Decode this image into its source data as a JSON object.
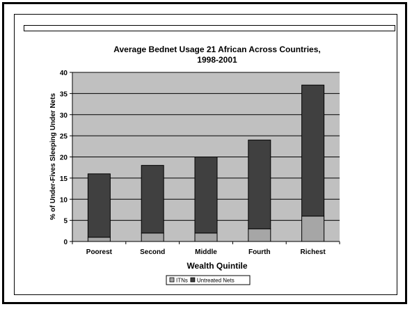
{
  "chart_data": {
    "type": "bar",
    "stacked": true,
    "title_line1": "Average Bednet Usage 21 African Across Countries,",
    "title_line2": "1998-2001",
    "xlabel": "Wealth Quintile",
    "ylabel": "% of Under-Fives Sleeping Under Nets",
    "categories": [
      "Poorest",
      "Second",
      "Middle",
      "Fourth",
      "Richest"
    ],
    "ylim": [
      0,
      40
    ],
    "yticks": [
      "0",
      "5",
      "10",
      "15",
      "20",
      "25",
      "30",
      "35",
      "40"
    ],
    "grid": true,
    "legend_position": "bottom",
    "series": [
      {
        "name": "ITNs",
        "values": [
          1,
          2,
          2,
          3,
          6
        ],
        "color": "#a6a6a6"
      },
      {
        "name": "Untreated Nets",
        "values": [
          15,
          16,
          18,
          21,
          31
        ],
        "color": "#404040"
      }
    ],
    "plot_background": "#c0c0c0"
  }
}
